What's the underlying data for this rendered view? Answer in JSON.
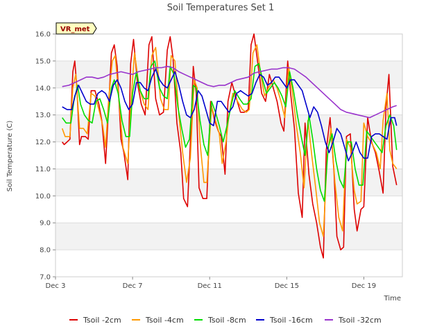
{
  "chart_data": {
    "type": "line",
    "title": "Soil Temperatures Set 1",
    "xlabel": "Time",
    "ylabel": "Soil Temperature (C)",
    "badge": "VR_met",
    "xlim": [
      3.0,
      21.0
    ],
    "ylim": [
      7.0,
      16.0
    ],
    "xticks": [
      {
        "value": 3,
        "label": "Dec 3"
      },
      {
        "value": 7,
        "label": "Dec 7"
      },
      {
        "value": 11,
        "label": "Dec 11"
      },
      {
        "value": 15,
        "label": "Dec 15"
      },
      {
        "value": 19,
        "label": "Dec 19"
      }
    ],
    "yticks": [
      {
        "value": 7,
        "label": "7.0"
      },
      {
        "value": 8,
        "label": "8.0"
      },
      {
        "value": 9,
        "label": "9.0"
      },
      {
        "value": 10,
        "label": "10.0"
      },
      {
        "value": 11,
        "label": "11.0"
      },
      {
        "value": 12,
        "label": "12.0"
      },
      {
        "value": 13,
        "label": "13.0"
      },
      {
        "value": 14,
        "label": "14.0"
      },
      {
        "value": 15,
        "label": "15.0"
      },
      {
        "value": 16,
        "label": "16.0"
      }
    ],
    "grid": true,
    "legend_position": "bottom",
    "series": [
      {
        "name": "Tsoil -2cm",
        "color": "#dd0000",
        "x": [
          3.35,
          3.45,
          3.6,
          3.75,
          3.9,
          4.0,
          4.1,
          4.25,
          4.35,
          4.55,
          4.7,
          4.85,
          5.05,
          5.25,
          5.4,
          5.6,
          5.75,
          5.9,
          6.05,
          6.2,
          6.4,
          6.55,
          6.75,
          6.9,
          7.05,
          7.25,
          7.45,
          7.65,
          7.85,
          8.0,
          8.2,
          8.4,
          8.6,
          8.8,
          8.95,
          9.1,
          9.3,
          9.5,
          9.65,
          9.85,
          10.0,
          10.15,
          10.3,
          10.45,
          10.65,
          10.85,
          11.05,
          11.25,
          11.45,
          11.6,
          11.8,
          11.95,
          12.15,
          12.35,
          12.6,
          12.8,
          13.0,
          13.15,
          13.3,
          13.5,
          13.7,
          13.9,
          14.1,
          14.3,
          14.5,
          14.7,
          14.85,
          15.05,
          15.2,
          15.4,
          15.6,
          15.8,
          15.95,
          16.15,
          16.35,
          16.55,
          16.75,
          16.9,
          17.05,
          17.25,
          17.45,
          17.6,
          17.8,
          17.95,
          18.1,
          18.3,
          18.5,
          18.65,
          18.85,
          19.0,
          19.2,
          19.4,
          19.6,
          19.8,
          20.0,
          20.15,
          20.3,
          20.5,
          20.7
        ],
        "values": [
          12.0,
          11.9,
          12.0,
          12.1,
          14.6,
          15.0,
          14.1,
          11.9,
          12.2,
          12.2,
          12.1,
          13.9,
          13.9,
          13.4,
          12.8,
          11.2,
          13.2,
          15.3,
          15.6,
          14.8,
          12.1,
          11.6,
          10.6,
          14.9,
          15.8,
          14.2,
          13.4,
          13.0,
          15.6,
          15.9,
          13.6,
          13.0,
          13.1,
          15.4,
          15.9,
          15.1,
          12.7,
          11.6,
          9.9,
          9.6,
          12.0,
          14.8,
          13.8,
          10.3,
          9.9,
          9.9,
          13.5,
          12.8,
          12.4,
          12.2,
          10.8,
          13.5,
          14.2,
          13.7,
          13.1,
          13.1,
          13.2,
          15.6,
          16.0,
          14.9,
          13.8,
          13.5,
          14.5,
          14.0,
          13.5,
          12.7,
          12.4,
          15.0,
          13.8,
          12.5,
          10.1,
          9.2,
          12.7,
          10.8,
          9.7,
          9.0,
          8.1,
          7.7,
          11.7,
          12.9,
          10.9,
          8.5,
          8.0,
          8.1,
          12.2,
          12.3,
          9.5,
          8.7,
          9.5,
          9.6,
          12.9,
          12.0,
          11.6,
          10.9,
          10.1,
          13.3,
          14.5,
          11.1,
          10.4
        ]
      },
      {
        "name": "Tsoil -4cm",
        "color": "#ff9900",
        "x": [
          3.35,
          3.5,
          3.75,
          3.9,
          4.05,
          4.25,
          4.45,
          4.65,
          4.85,
          5.05,
          5.25,
          5.45,
          5.6,
          5.75,
          5.95,
          6.1,
          6.3,
          6.5,
          6.75,
          6.95,
          7.1,
          7.35,
          7.6,
          7.8,
          8.0,
          8.2,
          8.45,
          8.65,
          8.85,
          9.0,
          9.2,
          9.4,
          9.6,
          9.8,
          10.0,
          10.2,
          10.35,
          10.5,
          10.7,
          10.85,
          11.1,
          11.3,
          11.5,
          11.65,
          11.85,
          12.0,
          12.2,
          12.45,
          12.7,
          12.9,
          13.05,
          13.25,
          13.45,
          13.65,
          13.85,
          14.05,
          14.3,
          14.5,
          14.7,
          14.9,
          15.1,
          15.3,
          15.5,
          15.7,
          15.9,
          16.1,
          16.3,
          16.5,
          16.7,
          16.9,
          17.1,
          17.3,
          17.5,
          17.7,
          17.9,
          18.1,
          18.3,
          18.5,
          18.65,
          18.85,
          19.0,
          19.2,
          19.45,
          19.65,
          19.85,
          20.0,
          20.2,
          20.35,
          20.5,
          20.7
        ],
        "values": [
          12.5,
          12.2,
          12.2,
          14.0,
          14.5,
          12.5,
          12.5,
          12.3,
          13.8,
          13.7,
          13.2,
          12.6,
          11.8,
          13.5,
          15.0,
          15.2,
          13.5,
          11.8,
          11.2,
          13.8,
          15.3,
          14.0,
          13.4,
          13.2,
          15.2,
          15.5,
          13.6,
          13.2,
          13.2,
          15.2,
          15.0,
          13.0,
          11.6,
          10.5,
          11.4,
          14.3,
          14.0,
          12.0,
          10.5,
          10.5,
          13.3,
          12.8,
          12.3,
          11.2,
          12.0,
          13.0,
          13.8,
          13.5,
          13.2,
          13.1,
          13.2,
          15.3,
          15.6,
          14.5,
          13.7,
          14.0,
          14.3,
          14.0,
          13.5,
          12.9,
          14.8,
          13.8,
          12.6,
          11.6,
          10.3,
          12.8,
          11.5,
          10.3,
          9.0,
          8.5,
          11.5,
          12.5,
          10.5,
          9.2,
          8.7,
          12.1,
          11.8,
          10.2,
          9.7,
          9.8,
          12.7,
          12.2,
          11.9,
          11.6,
          11.0,
          12.8,
          13.8,
          11.7,
          11.2,
          11.0
        ]
      },
      {
        "name": "Tsoil -8cm",
        "color": "#00dd00",
        "x": [
          3.35,
          3.55,
          3.8,
          3.95,
          4.15,
          4.3,
          4.5,
          4.7,
          4.9,
          5.1,
          5.3,
          5.5,
          5.7,
          5.9,
          6.05,
          6.25,
          6.45,
          6.65,
          6.85,
          7.0,
          7.2,
          7.4,
          7.6,
          7.8,
          7.95,
          8.15,
          8.4,
          8.6,
          8.8,
          8.95,
          9.15,
          9.35,
          9.55,
          9.75,
          9.95,
          10.15,
          10.3,
          10.5,
          10.7,
          10.9,
          11.1,
          11.3,
          11.5,
          11.7,
          11.9,
          12.1,
          12.3,
          12.55,
          12.75,
          12.95,
          13.15,
          13.35,
          13.55,
          13.75,
          13.95,
          14.15,
          14.35,
          14.55,
          14.75,
          14.95,
          15.15,
          15.35,
          15.55,
          15.75,
          15.95,
          16.15,
          16.35,
          16.55,
          16.75,
          16.95,
          17.15,
          17.35,
          17.55,
          17.75,
          17.95,
          18.15,
          18.35,
          18.55,
          18.75,
          18.95,
          19.15,
          19.35,
          19.55,
          19.75,
          19.95,
          20.15,
          20.35,
          20.55,
          20.7
        ],
        "values": [
          12.9,
          12.7,
          12.7,
          13.5,
          14.1,
          13.4,
          13.0,
          12.8,
          12.7,
          13.5,
          13.6,
          13.2,
          12.7,
          14.0,
          14.3,
          13.8,
          12.8,
          12.2,
          12.2,
          13.8,
          14.6,
          13.9,
          13.6,
          13.6,
          14.8,
          15.0,
          14.0,
          13.7,
          13.6,
          14.8,
          14.5,
          13.3,
          12.5,
          11.8,
          12.1,
          14.1,
          14.0,
          12.8,
          11.9,
          11.5,
          13.5,
          13.1,
          12.6,
          12.0,
          12.6,
          13.3,
          13.9,
          13.6,
          13.4,
          13.4,
          13.6,
          14.8,
          14.9,
          14.3,
          13.8,
          14.0,
          14.2,
          14.0,
          13.7,
          13.3,
          14.6,
          13.9,
          13.0,
          12.2,
          11.5,
          13.0,
          12.1,
          11.0,
          10.2,
          9.8,
          11.8,
          12.3,
          11.3,
          10.6,
          10.3,
          12.0,
          12.0,
          11.0,
          10.4,
          10.4,
          12.4,
          12.2,
          12.0,
          11.8,
          11.6,
          12.6,
          13.0,
          12.6,
          11.7
        ]
      },
      {
        "name": "Tsoil -16cm",
        "color": "#0000cc",
        "x": [
          3.35,
          3.6,
          3.85,
          4.0,
          4.2,
          4.4,
          4.6,
          4.8,
          5.0,
          5.2,
          5.4,
          5.6,
          5.8,
          6.0,
          6.2,
          6.4,
          6.6,
          6.8,
          7.0,
          7.2,
          7.4,
          7.6,
          7.8,
          8.0,
          8.2,
          8.4,
          8.6,
          8.8,
          9.0,
          9.2,
          9.4,
          9.6,
          9.8,
          10.0,
          10.2,
          10.4,
          10.6,
          10.8,
          11.0,
          11.2,
          11.4,
          11.6,
          11.8,
          12.0,
          12.2,
          12.4,
          12.6,
          12.8,
          13.0,
          13.2,
          13.4,
          13.6,
          13.8,
          14.0,
          14.2,
          14.4,
          14.6,
          14.8,
          15.0,
          15.2,
          15.4,
          15.6,
          15.8,
          16.0,
          16.2,
          16.4,
          16.6,
          16.8,
          17.0,
          17.2,
          17.4,
          17.6,
          17.8,
          18.0,
          18.2,
          18.4,
          18.6,
          18.8,
          19.0,
          19.2,
          19.4,
          19.6,
          19.8,
          20.0,
          20.2,
          20.4,
          20.6,
          20.7
        ],
        "values": [
          13.3,
          13.2,
          13.2,
          13.7,
          14.1,
          13.8,
          13.5,
          13.4,
          13.4,
          13.8,
          13.9,
          13.8,
          13.5,
          14.1,
          14.3,
          14.0,
          13.5,
          13.2,
          13.4,
          14.2,
          14.2,
          14.0,
          13.9,
          14.4,
          14.7,
          14.3,
          14.1,
          14.0,
          14.3,
          14.6,
          14.1,
          13.5,
          13.0,
          12.9,
          13.2,
          13.9,
          13.7,
          13.2,
          12.7,
          12.6,
          13.5,
          13.5,
          13.3,
          13.1,
          13.3,
          13.8,
          13.9,
          13.8,
          13.7,
          13.8,
          14.2,
          14.5,
          14.4,
          14.1,
          14.2,
          14.4,
          14.4,
          14.2,
          14.0,
          14.3,
          14.3,
          14.1,
          13.9,
          13.4,
          12.9,
          13.3,
          13.1,
          12.6,
          12.0,
          11.6,
          12.0,
          12.5,
          12.3,
          11.8,
          11.3,
          11.6,
          12.0,
          11.6,
          11.4,
          11.4,
          12.2,
          12.3,
          12.3,
          12.2,
          12.1,
          12.9,
          12.9,
          12.6
        ]
      },
      {
        "name": "Tsoil -32cm",
        "color": "#9933cc",
        "x": [
          3.35,
          3.7,
          4.0,
          4.3,
          4.6,
          4.9,
          5.2,
          5.5,
          5.8,
          6.1,
          6.4,
          6.7,
          7.0,
          7.3,
          7.6,
          7.9,
          8.2,
          8.5,
          8.8,
          9.1,
          9.4,
          9.7,
          10.0,
          10.3,
          10.6,
          10.9,
          11.2,
          11.5,
          11.8,
          12.1,
          12.4,
          12.7,
          13.0,
          13.3,
          13.6,
          13.9,
          14.2,
          14.5,
          14.8,
          15.1,
          15.4,
          15.7,
          16.0,
          16.3,
          16.6,
          16.9,
          17.2,
          17.5,
          17.8,
          18.1,
          18.4,
          18.7,
          19.0,
          19.3,
          19.6,
          19.9,
          20.2,
          20.5,
          20.7
        ],
        "values": [
          14.05,
          14.1,
          14.2,
          14.3,
          14.4,
          14.4,
          14.35,
          14.4,
          14.5,
          14.55,
          14.6,
          14.55,
          14.5,
          14.6,
          14.65,
          14.7,
          14.75,
          14.75,
          14.8,
          14.75,
          14.6,
          14.5,
          14.4,
          14.3,
          14.2,
          14.1,
          14.05,
          14.1,
          14.1,
          14.2,
          14.3,
          14.35,
          14.4,
          14.55,
          14.6,
          14.65,
          14.7,
          14.7,
          14.75,
          14.75,
          14.7,
          14.55,
          14.4,
          14.2,
          14.0,
          13.8,
          13.6,
          13.4,
          13.2,
          13.1,
          13.05,
          13.0,
          12.95,
          12.9,
          13.0,
          13.1,
          13.2,
          13.3,
          13.35
        ]
      }
    ]
  }
}
